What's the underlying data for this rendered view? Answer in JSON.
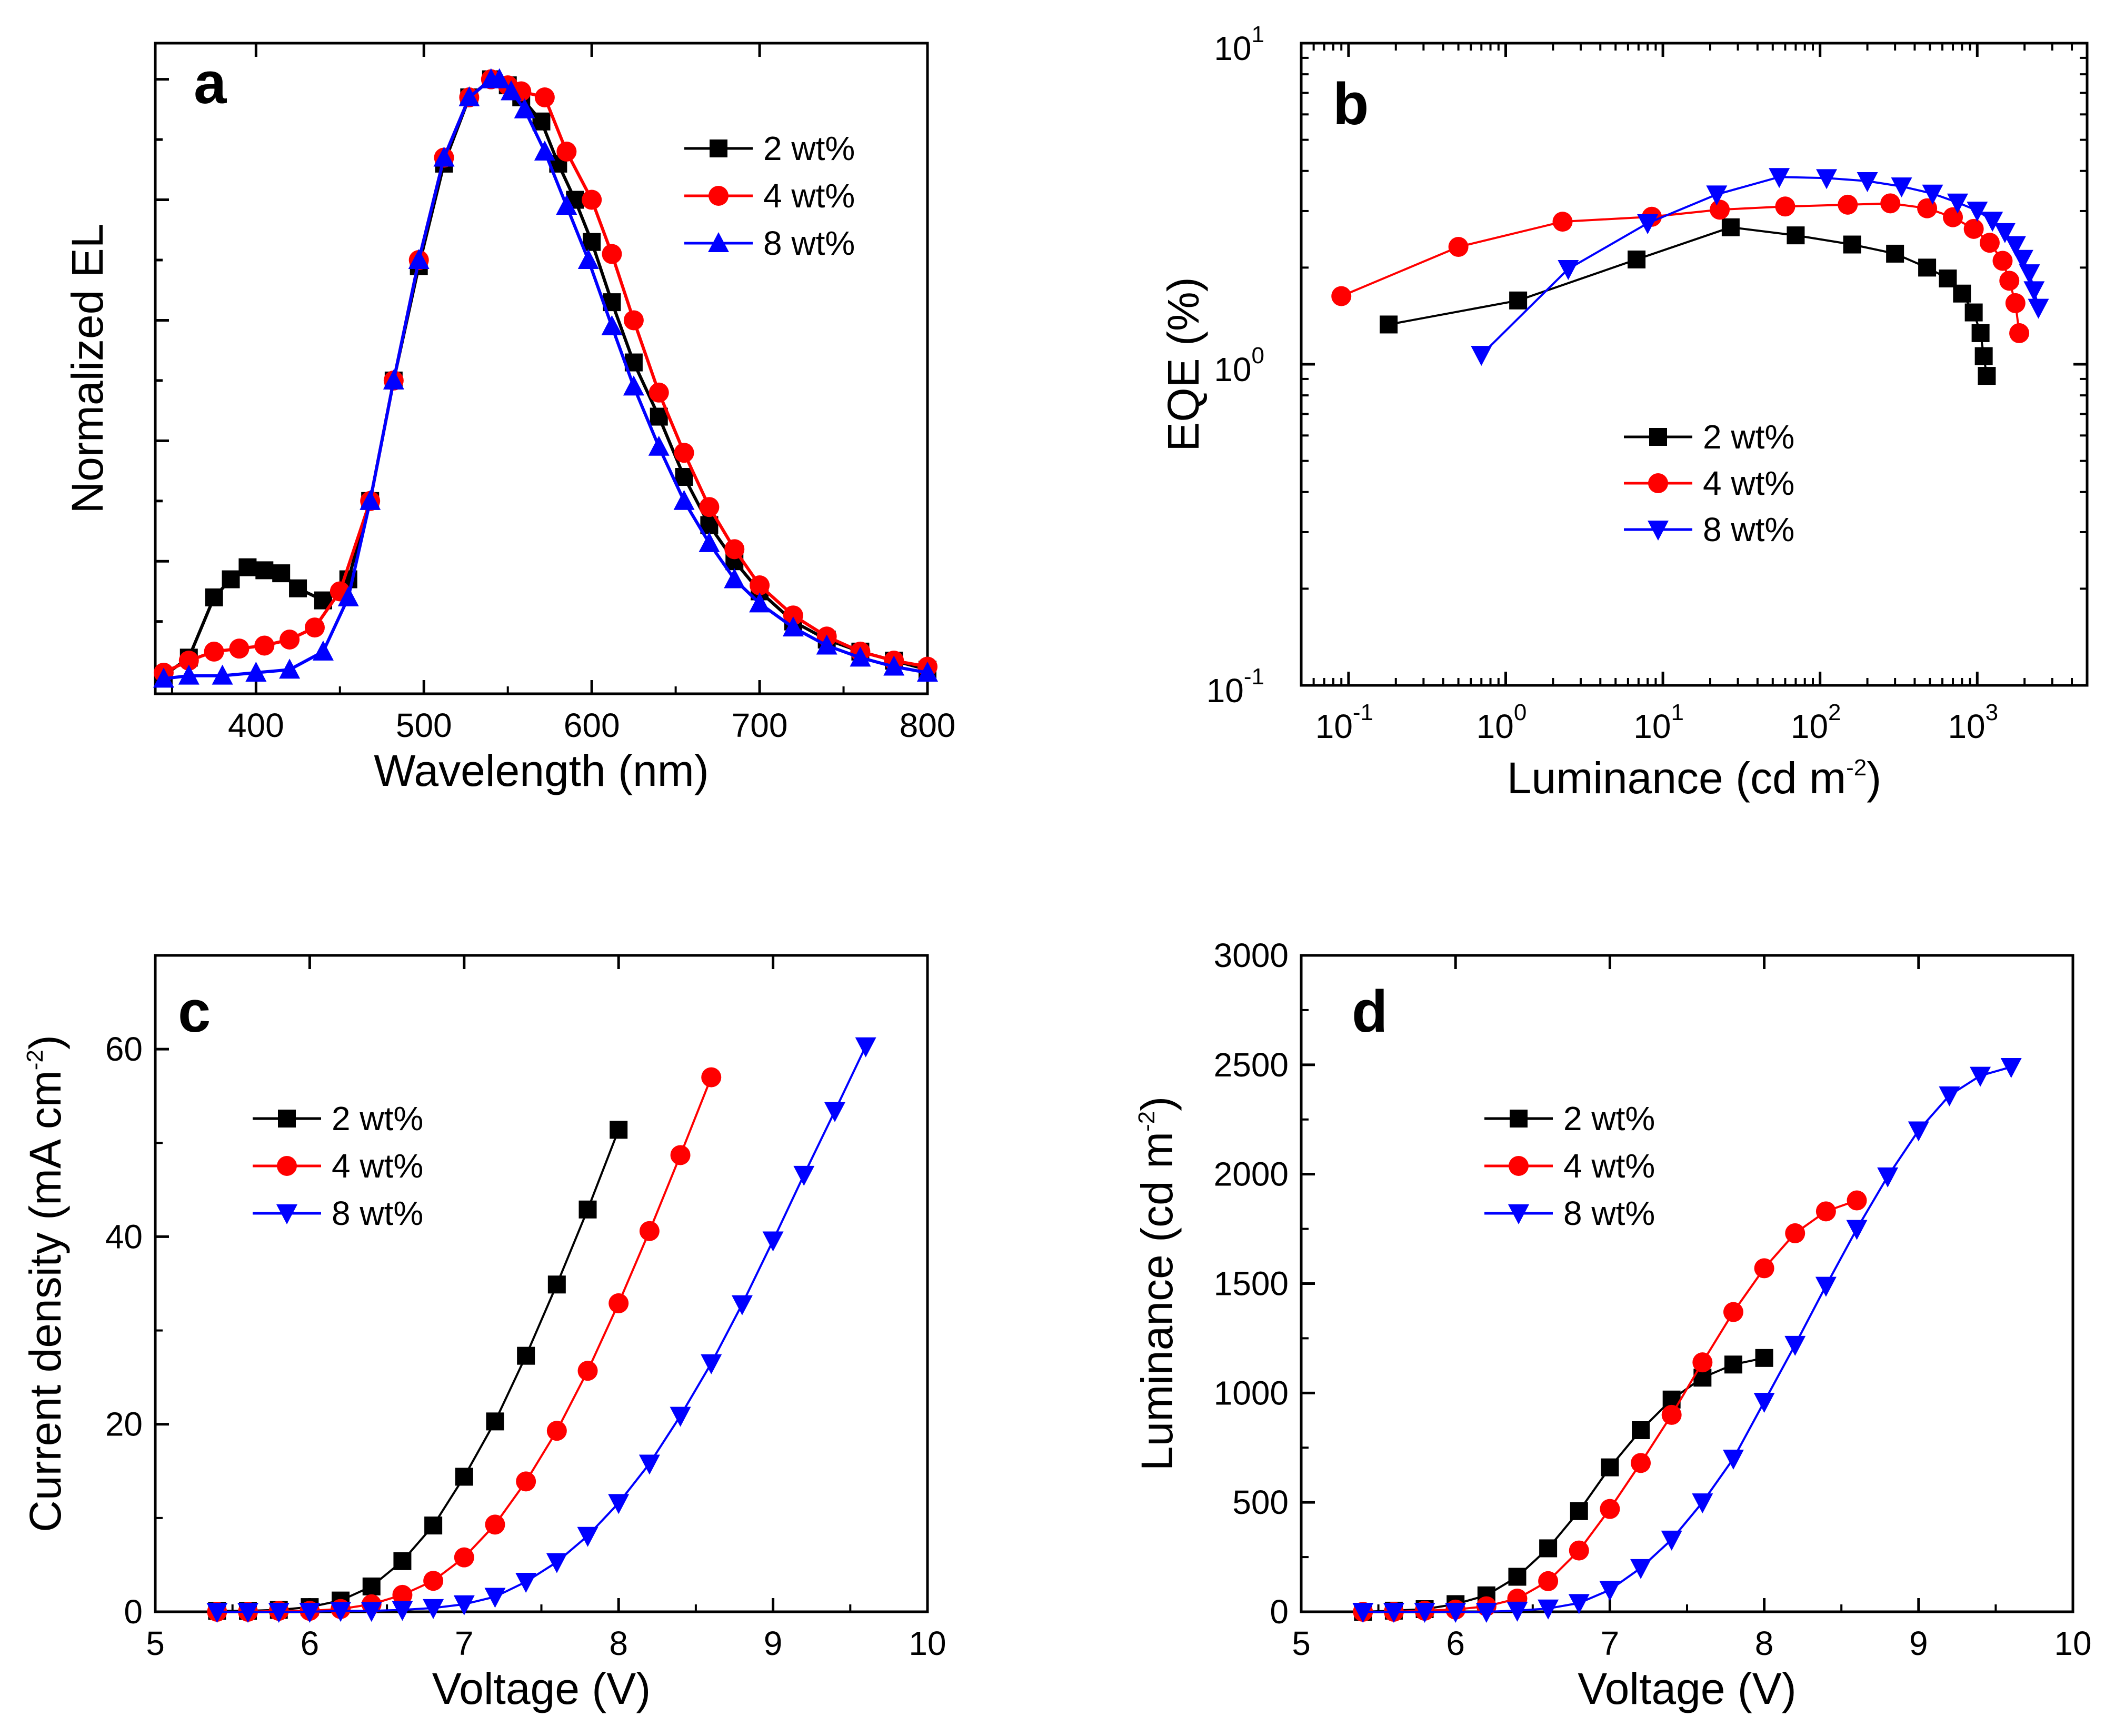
{
  "chart_data": [
    {
      "panel": "a",
      "type": "line",
      "xlabel": "Wavelength (nm)",
      "ylabel": "Normalized EL",
      "xlim": [
        340,
        800
      ],
      "ylim": [
        -0.02,
        1.06
      ],
      "xticks": [
        400,
        500,
        600,
        700,
        800
      ],
      "xtick_labels": [
        "400",
        "500",
        "600",
        "700",
        "800"
      ],
      "y_tick_labels_shown": false,
      "legend": "top-right",
      "series": [
        {
          "name": "2 wt%",
          "color": "#000000",
          "marker": "square",
          "x": [
            345,
            360,
            375,
            385,
            395,
            405,
            415,
            425,
            440,
            455,
            468,
            482,
            497,
            512,
            527,
            540,
            550,
            558,
            570,
            580,
            590,
            600,
            612,
            625,
            640,
            655,
            670,
            685,
            700,
            720,
            740,
            760,
            780,
            800
          ],
          "y": [
            0.01,
            0.04,
            0.14,
            0.17,
            0.19,
            0.185,
            0.18,
            0.155,
            0.135,
            0.17,
            0.3,
            0.5,
            0.69,
            0.86,
            0.97,
            1.0,
            0.99,
            0.97,
            0.93,
            0.86,
            0.8,
            0.73,
            0.63,
            0.53,
            0.44,
            0.34,
            0.26,
            0.2,
            0.15,
            0.1,
            0.07,
            0.05,
            0.035,
            0.02
          ]
        },
        {
          "name": "4 wt%",
          "color": "#ff0000",
          "marker": "circle",
          "x": [
            345,
            360,
            375,
            390,
            405,
            420,
            435,
            450,
            468,
            482,
            497,
            512,
            527,
            540,
            550,
            558,
            572,
            585,
            600,
            612,
            625,
            640,
            655,
            670,
            685,
            700,
            720,
            740,
            760,
            780,
            800
          ],
          "y": [
            0.015,
            0.035,
            0.05,
            0.055,
            0.06,
            0.07,
            0.09,
            0.15,
            0.3,
            0.5,
            0.7,
            0.87,
            0.97,
            1.0,
            0.99,
            0.98,
            0.97,
            0.88,
            0.8,
            0.71,
            0.6,
            0.48,
            0.38,
            0.29,
            0.22,
            0.16,
            0.11,
            0.075,
            0.05,
            0.035,
            0.025
          ]
        },
        {
          "name": "8 wt%",
          "color": "#0000ff",
          "marker": "triangle-up",
          "x": [
            345,
            360,
            380,
            400,
            420,
            440,
            455,
            468,
            482,
            497,
            512,
            527,
            540,
            545,
            552,
            560,
            572,
            585,
            598,
            612,
            625,
            640,
            655,
            670,
            685,
            700,
            720,
            740,
            760,
            780,
            800
          ],
          "y": [
            0.005,
            0.01,
            0.01,
            0.015,
            0.02,
            0.05,
            0.14,
            0.3,
            0.5,
            0.7,
            0.87,
            0.97,
            1.0,
            1.0,
            0.98,
            0.95,
            0.88,
            0.79,
            0.7,
            0.59,
            0.49,
            0.39,
            0.3,
            0.23,
            0.17,
            0.13,
            0.09,
            0.06,
            0.04,
            0.025,
            0.015
          ]
        }
      ]
    },
    {
      "panel": "b",
      "type": "line",
      "xscale": "log",
      "yscale": "log",
      "xlabel": "Luminance (cd m",
      "xlabel_sup": "-2",
      "xlabel_end": ")",
      "ylabel": "EQE (%)",
      "xlim": [
        0.05,
        5000
      ],
      "ylim": [
        0.1,
        10
      ],
      "xticks": [
        0.1,
        1,
        10,
        100,
        1000
      ],
      "xtick_bases": [
        "10",
        "10",
        "10",
        "10",
        "10"
      ],
      "xtick_exps": [
        "-1",
        "0",
        "1",
        "2",
        "3"
      ],
      "yticks": [
        0.1,
        1,
        10
      ],
      "ytick_bases": [
        "10",
        "10",
        "10"
      ],
      "ytick_exps": [
        "-1",
        "0",
        "1"
      ],
      "legend": "center-right",
      "series": [
        {
          "name": "2 wt%",
          "color": "#000000",
          "marker": "square",
          "x": [
            0.18,
            1.2,
            6.8,
            27,
            70,
            160,
            300,
            480,
            650,
            800,
            950,
            1050,
            1100,
            1150
          ],
          "y": [
            1.33,
            1.58,
            2.12,
            2.67,
            2.52,
            2.36,
            2.21,
            2.0,
            1.85,
            1.66,
            1.45,
            1.25,
            1.06,
            0.92
          ]
        },
        {
          "name": "4 wt%",
          "color": "#ff0000",
          "marker": "circle",
          "x": [
            0.09,
            0.5,
            2.3,
            8.5,
            23,
            60,
            150,
            280,
            480,
            700,
            950,
            1200,
            1450,
            1600,
            1750,
            1850
          ],
          "y": [
            1.63,
            2.32,
            2.78,
            2.88,
            3.03,
            3.1,
            3.14,
            3.17,
            3.06,
            2.87,
            2.64,
            2.39,
            2.1,
            1.82,
            1.55,
            1.25
          ]
        },
        {
          "name": "8 wt%",
          "color": "#0000ff",
          "marker": "triangle-down",
          "x": [
            0.7,
            2.5,
            8,
            22,
            55,
            110,
            200,
            330,
            520,
            750,
            1000,
            1250,
            1500,
            1750,
            1950,
            2150,
            2300,
            2450
          ],
          "y": [
            1.07,
            1.98,
            2.75,
            3.38,
            3.83,
            3.8,
            3.72,
            3.58,
            3.4,
            3.19,
            3.01,
            2.8,
            2.58,
            2.35,
            2.13,
            1.92,
            1.7,
            1.5
          ]
        }
      ]
    },
    {
      "panel": "c",
      "type": "line",
      "xlabel": "Voltage (V)",
      "ylabel": "Current density (mA cm",
      "ylabel_sup": "-2",
      "ylabel_end": ")",
      "xlim": [
        5,
        10
      ],
      "ylim": [
        0,
        70
      ],
      "xticks": [
        5,
        6,
        7,
        8,
        9,
        10
      ],
      "xtick_labels": [
        "5",
        "6",
        "7",
        "8",
        "9",
        "10"
      ],
      "yticks": [
        0,
        20,
        40,
        60
      ],
      "ytick_labels": [
        "0",
        "20",
        "40",
        "60"
      ],
      "legend": "upper-left",
      "series": [
        {
          "name": "2 wt%",
          "color": "#000000",
          "marker": "square",
          "x": [
            5.4,
            5.6,
            5.8,
            6.0,
            6.2,
            6.4,
            6.6,
            6.8,
            7.0,
            7.2,
            7.4,
            7.6,
            7.8,
            8.0
          ],
          "y": [
            0.1,
            0.1,
            0.2,
            0.5,
            1.2,
            2.7,
            5.4,
            9.2,
            14.4,
            20.3,
            27.3,
            34.9,
            42.9,
            51.4
          ]
        },
        {
          "name": "4 wt%",
          "color": "#ff0000",
          "marker": "circle",
          "x": [
            5.4,
            5.6,
            5.8,
            6.0,
            6.2,
            6.4,
            6.6,
            6.8,
            7.0,
            7.2,
            7.4,
            7.6,
            7.8,
            8.0,
            8.2,
            8.4,
            8.6
          ],
          "y": [
            0.0,
            0.0,
            0.1,
            0.1,
            0.3,
            0.8,
            1.8,
            3.3,
            5.8,
            9.3,
            13.9,
            19.3,
            25.7,
            32.9,
            40.6,
            48.7,
            57.0
          ]
        },
        {
          "name": "8 wt%",
          "color": "#0000ff",
          "marker": "triangle-down",
          "x": [
            5.4,
            5.6,
            5.8,
            6.0,
            6.2,
            6.4,
            6.6,
            6.8,
            7.0,
            7.2,
            7.4,
            7.6,
            7.8,
            8.0,
            8.2,
            8.4,
            8.6,
            8.8,
            9.0,
            9.2,
            9.4,
            9.6
          ],
          "y": [
            0.0,
            0.0,
            0.0,
            0.0,
            0.1,
            0.1,
            0.2,
            0.4,
            0.8,
            1.6,
            3.2,
            5.3,
            8.1,
            11.6,
            15.8,
            20.9,
            26.5,
            32.8,
            39.6,
            46.6,
            53.4,
            60.3
          ]
        }
      ]
    },
    {
      "panel": "d",
      "type": "line",
      "xlabel": "Voltage (V)",
      "ylabel": "Luminance (cd m",
      "ylabel_sup": "-2",
      "ylabel_end": ")",
      "xlim": [
        5,
        10
      ],
      "ylim": [
        0,
        3000
      ],
      "xticks": [
        5,
        6,
        7,
        8,
        9,
        10
      ],
      "xtick_labels": [
        "5",
        "6",
        "7",
        "8",
        "9",
        "10"
      ],
      "yticks": [
        0,
        500,
        1000,
        1500,
        2000,
        2500,
        3000
      ],
      "ytick_labels": [
        "0",
        "500",
        "1000",
        "1500",
        "2000",
        "2500",
        "3000"
      ],
      "legend": "upper-left",
      "series": [
        {
          "name": "2 wt%",
          "color": "#000000",
          "marker": "square",
          "x": [
            5.4,
            5.6,
            5.8,
            6.0,
            6.2,
            6.4,
            6.6,
            6.8,
            7.0,
            7.2,
            7.4,
            7.6,
            7.8,
            8.0
          ],
          "y": [
            0,
            5,
            12,
            35,
            75,
            160,
            290,
            460,
            660,
            830,
            970,
            1070,
            1130,
            1160
          ]
        },
        {
          "name": "4 wt%",
          "color": "#ff0000",
          "marker": "circle",
          "x": [
            5.4,
            5.6,
            5.8,
            6.0,
            6.2,
            6.4,
            6.6,
            6.8,
            7.0,
            7.2,
            7.4,
            7.6,
            7.8,
            8.0,
            8.2,
            8.4,
            8.6
          ],
          "y": [
            0,
            0,
            5,
            10,
            25,
            60,
            140,
            280,
            470,
            680,
            900,
            1140,
            1370,
            1570,
            1730,
            1830,
            1880
          ]
        },
        {
          "name": "8 wt%",
          "color": "#0000ff",
          "marker": "triangle-down",
          "x": [
            5.4,
            5.6,
            5.8,
            6.0,
            6.2,
            6.4,
            6.6,
            6.8,
            7.0,
            7.2,
            7.4,
            7.6,
            7.8,
            8.0,
            8.2,
            8.4,
            8.6,
            8.8,
            9.0,
            9.2,
            9.4,
            9.6
          ],
          "y": [
            0,
            0,
            0,
            0,
            0,
            5,
            15,
            40,
            100,
            200,
            330,
            500,
            700,
            960,
            1220,
            1490,
            1750,
            1990,
            2200,
            2360,
            2450,
            2490
          ]
        }
      ]
    }
  ]
}
